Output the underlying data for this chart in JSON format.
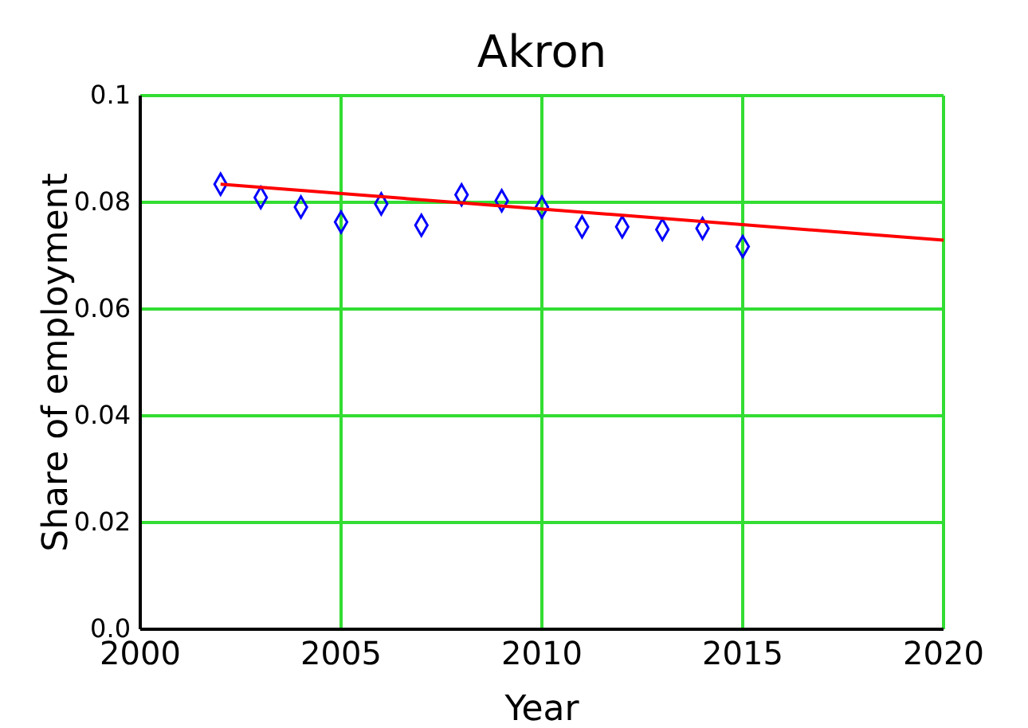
{
  "chart_data": {
    "type": "scatter",
    "title": "Akron",
    "xlabel": "Year",
    "ylabel": "Share of employment",
    "xlim": [
      2000,
      2020
    ],
    "ylim": [
      0,
      0.1
    ],
    "xticks": [
      2000,
      2005,
      2010,
      2015,
      2020
    ],
    "yticks": [
      {
        "value": 0,
        "label": "0.0"
      },
      0.02,
      0.04,
      0.06,
      0.08,
      0.1
    ],
    "grid": true,
    "series": [
      {
        "color": "#0000ff",
        "marker": "diamond",
        "x": [
          2002,
          2003,
          2004,
          2005,
          2006,
          2007,
          2008,
          2009,
          2010,
          2011,
          2012,
          2013,
          2014,
          2015
        ],
        "values": [
          0.0834,
          0.0809,
          0.0791,
          0.0763,
          0.0797,
          0.0757,
          0.0814,
          0.0803,
          0.0791,
          0.0754,
          0.0754,
          0.0749,
          0.0751,
          0.0717
        ]
      },
      {
        "type": "line",
        "marker": "none",
        "color": "#ff0000",
        "x": [
          2002,
          2020
        ],
        "values": [
          0.0834,
          0.0729
        ]
      }
    ]
  }
}
